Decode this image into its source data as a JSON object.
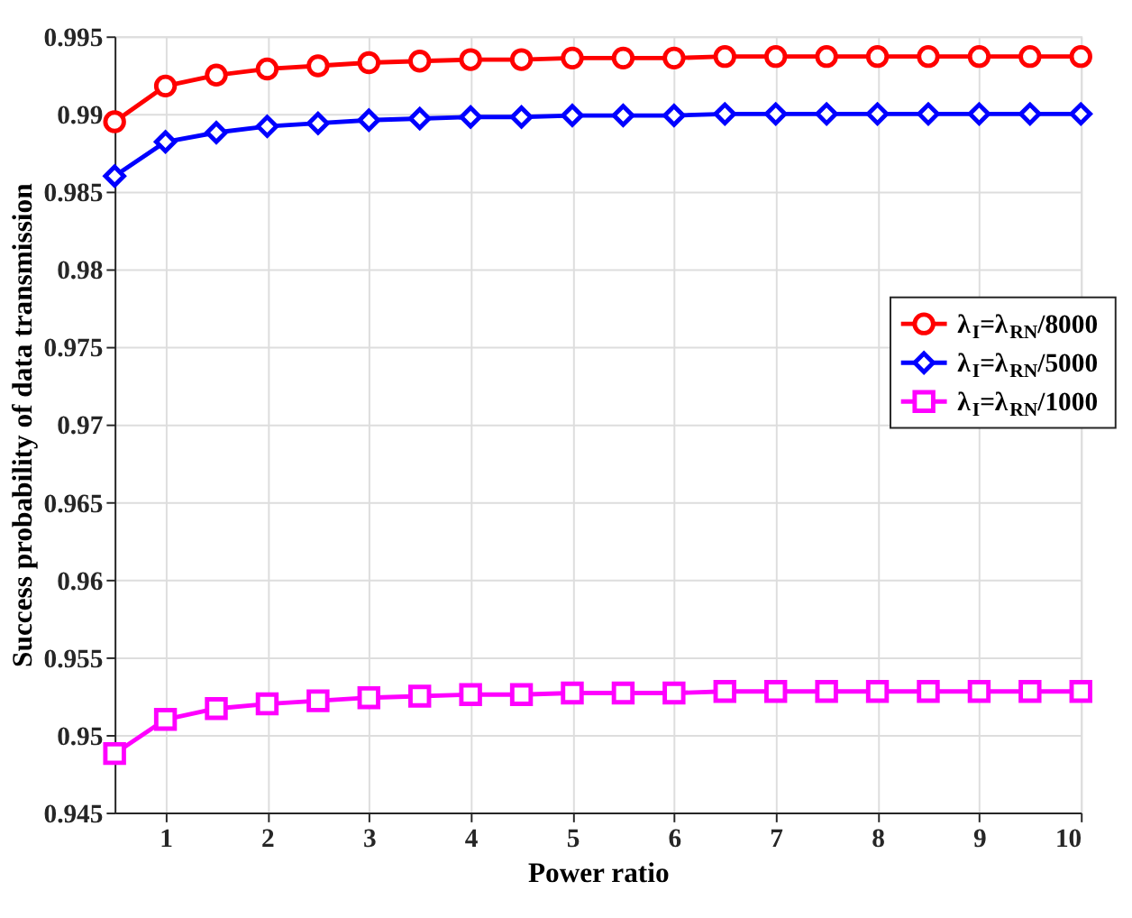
{
  "chart_data": {
    "type": "line",
    "xlabel": "Power ratio",
    "ylabel": "Success probability of data transmission",
    "x": [
      0.5,
      1,
      1.5,
      2,
      2.5,
      3,
      3.5,
      4,
      4.5,
      5,
      5.5,
      6,
      6.5,
      7,
      7.5,
      8,
      8.5,
      9,
      9.5,
      10
    ],
    "series": [
      {
        "name": "λ$_{I}$=λ$_{RN}$/8000",
        "color": "#ff0000",
        "marker": "circle",
        "values": [
          0.9895,
          0.9918,
          0.9925,
          0.9929,
          0.9931,
          0.9933,
          0.9934,
          0.9935,
          0.9935,
          0.9936,
          0.9936,
          0.9936,
          0.9937,
          0.9937,
          0.9937,
          0.9937,
          0.9937,
          0.9937,
          0.9937,
          0.9937
        ]
      },
      {
        "name": "λ$_{I}$=λ$_{RN}$/5000",
        "color": "#0000ff",
        "marker": "diamond",
        "values": [
          0.986,
          0.9882,
          0.9888,
          0.9892,
          0.9894,
          0.9896,
          0.9897,
          0.9898,
          0.9898,
          0.9899,
          0.9899,
          0.9899,
          0.99,
          0.99,
          0.99,
          0.99,
          0.99,
          0.99,
          0.99,
          0.99
        ]
      },
      {
        "name": "λ$_{I}$=λ$_{RN}$/1000",
        "color": "#ff00ff",
        "marker": "square",
        "values": [
          0.9488,
          0.951,
          0.9517,
          0.952,
          0.9522,
          0.9524,
          0.9525,
          0.9526,
          0.9526,
          0.9527,
          0.9527,
          0.9527,
          0.9528,
          0.9528,
          0.9528,
          0.9528,
          0.9528,
          0.9528,
          0.9528,
          0.9528
        ]
      }
    ],
    "xlim": [
      0.5,
      10
    ],
    "xticks": [
      1,
      2,
      3,
      4,
      5,
      6,
      7,
      8,
      9,
      10
    ],
    "ylim": [
      0.945,
      0.995
    ],
    "yticks": [
      0.945,
      0.95,
      0.955,
      0.96,
      0.965,
      0.97,
      0.975,
      0.98,
      0.985,
      0.99,
      0.995
    ],
    "grid": true,
    "legend": "right",
    "line_style": "solid"
  }
}
